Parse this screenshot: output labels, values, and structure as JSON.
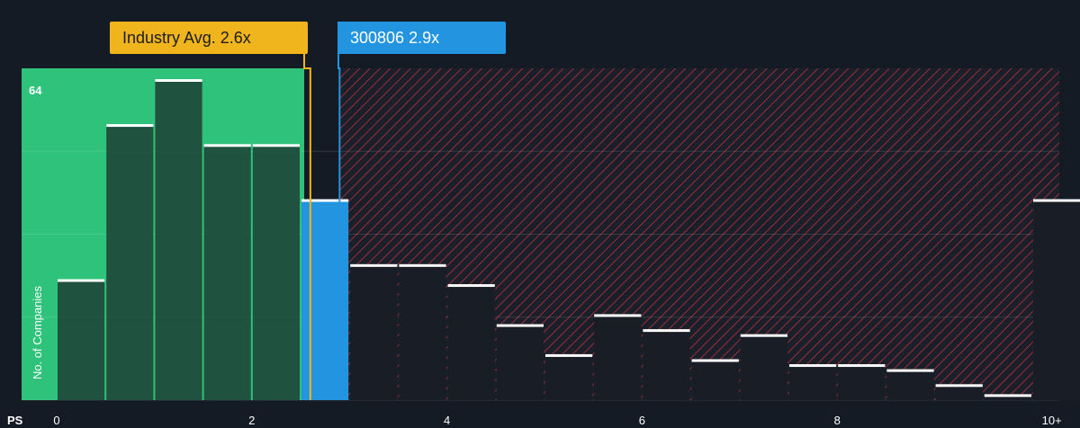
{
  "chart_data": {
    "type": "bar",
    "xlabel": "PS",
    "ylabel": "No. of Companies",
    "ytick_label": "64",
    "ylim": [
      0,
      64
    ],
    "x_ticks": [
      {
        "value": 0,
        "label": "0"
      },
      {
        "value": 2,
        "label": "2"
      },
      {
        "value": 4,
        "label": "4"
      },
      {
        "value": 6,
        "label": "6"
      },
      {
        "value": 8,
        "label": "8"
      },
      {
        "value": 10.2,
        "label": "10+"
      }
    ],
    "bin_width": 0.5,
    "bars": [
      {
        "x0": 0.0,
        "value": 24
      },
      {
        "x0": 0.5,
        "value": 55
      },
      {
        "x0": 1.0,
        "value": 64
      },
      {
        "x0": 1.5,
        "value": 51
      },
      {
        "x0": 2.0,
        "value": 51
      },
      {
        "x0": 2.5,
        "value": 40
      },
      {
        "x0": 3.0,
        "value": 27
      },
      {
        "x0": 3.5,
        "value": 27
      },
      {
        "x0": 4.0,
        "value": 23
      },
      {
        "x0": 4.5,
        "value": 15
      },
      {
        "x0": 5.0,
        "value": 9
      },
      {
        "x0": 5.5,
        "value": 17
      },
      {
        "x0": 6.0,
        "value": 14
      },
      {
        "x0": 6.5,
        "value": 8
      },
      {
        "x0": 7.0,
        "value": 13
      },
      {
        "x0": 7.5,
        "value": 7
      },
      {
        "x0": 8.0,
        "value": 7
      },
      {
        "x0": 8.5,
        "value": 6
      },
      {
        "x0": 9.0,
        "value": 3
      },
      {
        "x0": 9.5,
        "value": 1
      },
      {
        "x0": 10.0,
        "value": 40
      }
    ],
    "industry_avg": 2.6,
    "company_value": 2.9,
    "annotations": {
      "industry_label": "Industry Avg. 2.6x",
      "company_label": "300806 2.9x"
    },
    "colors": {
      "background": "#151b24",
      "undervalued_zone": "#2ec27a",
      "bar_in_green": "#1f4a3a",
      "bar_dark": "#181d26",
      "hatch": "#b8323c",
      "company_bar": "#2394e0",
      "industry_line": "#f0b41c",
      "bar_cap": "#ffffff"
    }
  }
}
